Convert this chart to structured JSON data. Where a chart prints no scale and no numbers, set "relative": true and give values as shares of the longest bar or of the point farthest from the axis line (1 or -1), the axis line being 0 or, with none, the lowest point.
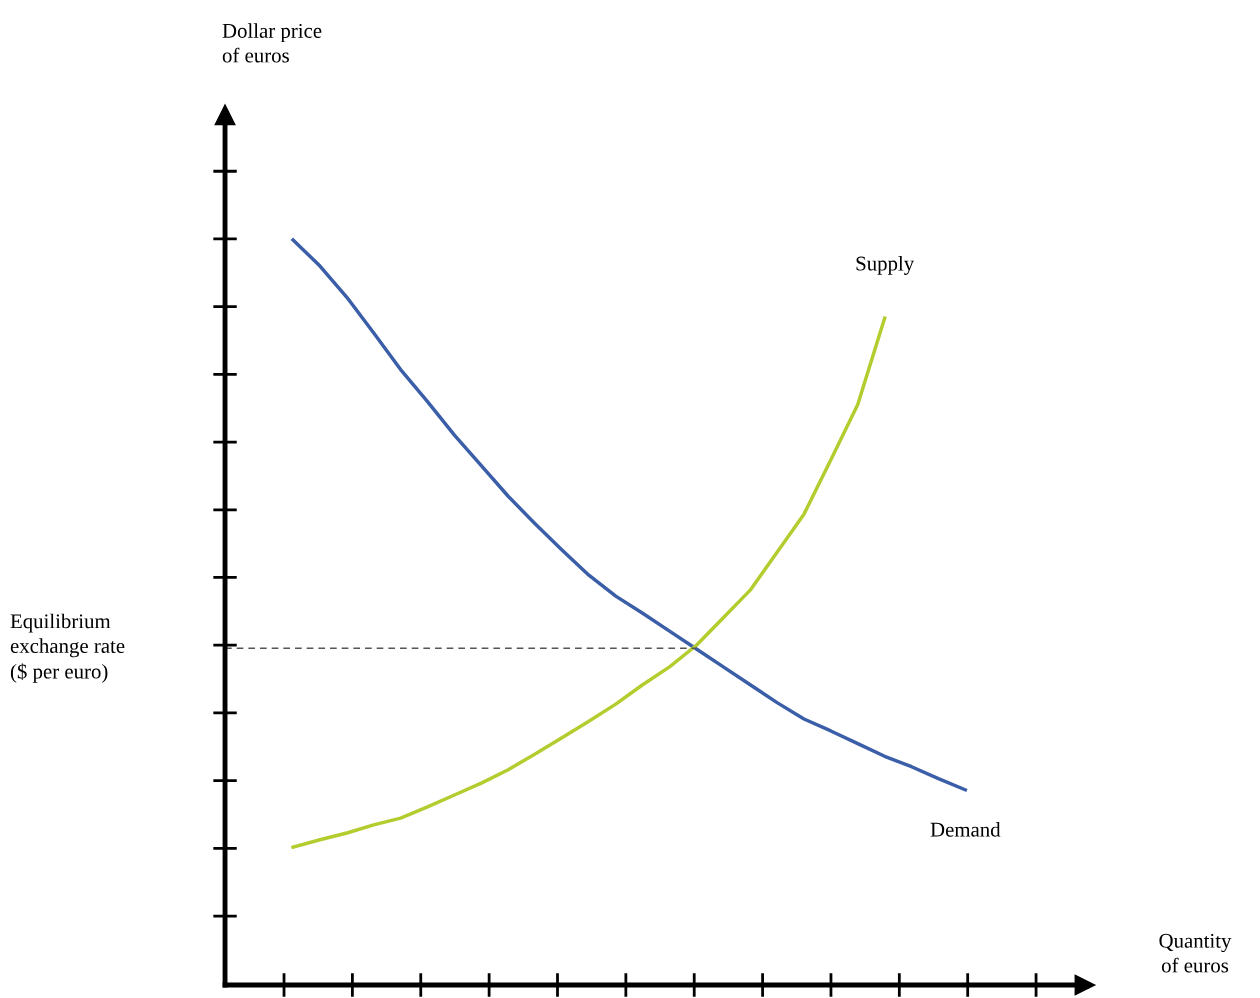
{
  "chart_data": {
    "type": "line",
    "relative": true,
    "annotations": [
      "Dollar price\nof euros",
      "Quantity\nof euros",
      "Equilibrium\nexchange rate\n($ per euro)"
    ],
    "categories": [
      null,
      null,
      null,
      null,
      null,
      null,
      null,
      null,
      null,
      null,
      null,
      null,
      null,
      null,
      null,
      null,
      null,
      null,
      null,
      null,
      null,
      null,
      null,
      null,
      null,
      null
    ],
    "series": [
      {
        "name": "Demand",
        "color": "#3b5ea8",
        "values": [
          1.0,
          0.965,
          0.923,
          0.875,
          0.826,
          0.783,
          0.738,
          0.697,
          0.656,
          0.619,
          0.584,
          0.55,
          0.522,
          0.499,
          0.475,
          0.451,
          0.427,
          0.403,
          0.379,
          0.357,
          0.341,
          0.324,
          0.307,
          0.293,
          0.277,
          0.262
        ]
      },
      {
        "name": "Supply",
        "color": "#b5cc2e",
        "values": [
          0.185,
          0.195,
          0.204,
          0.215,
          0.224,
          0.239,
          0.255,
          0.271,
          0.289,
          0.31,
          0.332,
          0.354,
          0.377,
          0.403,
          0.427,
          0.456,
          0.493,
          0.53,
          0.581,
          0.632,
          0.705,
          0.779,
          0.895,
          null,
          null,
          null
        ]
      }
    ],
    "ref_lines": [
      {
        "axis": "y",
        "value": 0.452,
        "color": "#555555",
        "line_style": "dashed"
      }
    ]
  }
}
